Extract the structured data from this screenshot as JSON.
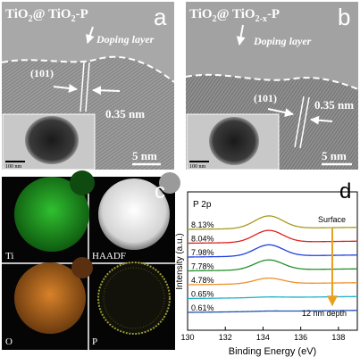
{
  "panel_a": {
    "letter": "a",
    "title_prefix": "TiO",
    "title_sub": "2",
    "title_mid": "@ TiO",
    "title_sub2": "2",
    "title_suffix": "-P",
    "doping_label": "Doping layer",
    "plane_label": "(101)",
    "spacing_label": "0.35 nm",
    "scale_main": "5 nm",
    "scale_inset": "100 nm"
  },
  "panel_b": {
    "letter": "b",
    "title_prefix": "TiO",
    "title_sub": "2",
    "title_mid": "@ TiO",
    "title_sub2": "2-x",
    "title_suffix": "-P",
    "doping_label": "Doping layer",
    "plane_label": "(101)",
    "spacing_label": "0.35 nm",
    "scale_main": "5 nm",
    "scale_inset": "100 nm"
  },
  "panel_c": {
    "letter": "c",
    "maps": [
      {
        "label": "Ti",
        "color": "#1fa11f"
      },
      {
        "label": "HAADF",
        "color": "#e6e6e6"
      },
      {
        "label": "O",
        "color": "#c8731d"
      },
      {
        "label": "P",
        "color": "#8a8a2a"
      }
    ]
  },
  "panel_d": {
    "letter": "d",
    "chart_data": {
      "type": "line",
      "title": "P 2p",
      "xlabel": "Binding Energy (eV)",
      "ylabel": "Intensity (a.u.)",
      "xlim": [
        130,
        139
      ],
      "xticks": [
        130,
        132,
        134,
        136,
        138
      ],
      "peak_center": 134.3,
      "grid": false,
      "series": [
        {
          "name": "8.13%",
          "color": "#a89a1e",
          "offset": 8,
          "amplitude": 1.0
        },
        {
          "name": "8.04%",
          "color": "#e02020",
          "offset": 7,
          "amplitude": 0.95
        },
        {
          "name": "7.98%",
          "color": "#2040e0",
          "offset": 6,
          "amplitude": 0.9
        },
        {
          "name": "7.78%",
          "color": "#20902a",
          "offset": 5,
          "amplitude": 0.8
        },
        {
          "name": "4.78%",
          "color": "#f0902a",
          "offset": 4,
          "amplitude": 0.45
        },
        {
          "name": "0.65%",
          "color": "#20b0c8",
          "offset": 3,
          "amplitude": 0.05
        },
        {
          "name": "0.61%",
          "color": "#2050b0",
          "offset": 2,
          "amplitude": 0.03
        }
      ],
      "annotations": [
        {
          "text": "Surface"
        },
        {
          "text": "12 nm depth"
        }
      ]
    }
  }
}
